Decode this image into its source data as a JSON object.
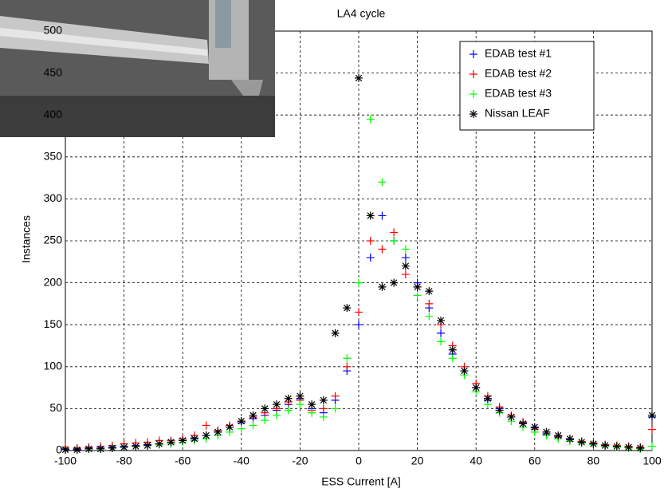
{
  "chart_data": {
    "type": "scatter",
    "title": "LA4 cycle",
    "x_label": "ESS Current [A]",
    "y_label": "Instances",
    "x": [
      -100,
      -96,
      -92,
      -88,
      -84,
      -80,
      -76,
      -72,
      -68,
      -64,
      -60,
      -56,
      -52,
      -48,
      -44,
      -40,
      -36,
      -32,
      -28,
      -24,
      -20,
      -16,
      -12,
      -8,
      -4,
      0,
      4,
      8,
      12,
      16,
      20,
      24,
      28,
      32,
      36,
      40,
      44,
      48,
      52,
      56,
      60,
      64,
      68,
      72,
      76,
      80,
      84,
      88,
      92,
      96,
      100
    ],
    "series": [
      {
        "name": "EDAB test #1",
        "color": "#0000ff",
        "marker": "plus",
        "values": [
          2,
          2,
          3,
          3,
          4,
          5,
          6,
          7,
          8,
          10,
          12,
          15,
          18,
          22,
          28,
          33,
          38,
          42,
          48,
          55,
          62,
          50,
          45,
          60,
          95,
          150,
          230,
          280,
          250,
          230,
          200,
          170,
          140,
          115,
          95,
          75,
          60,
          50,
          40,
          33,
          27,
          20,
          16,
          13,
          10,
          8,
          6,
          5,
          4,
          3,
          40
        ]
      },
      {
        "name": "EDAB test #2",
        "color": "#ff0000",
        "marker": "plus",
        "values": [
          4,
          3,
          4,
          5,
          6,
          8,
          9,
          10,
          12,
          12,
          14,
          18,
          30,
          24,
          30,
          35,
          40,
          45,
          50,
          58,
          60,
          48,
          50,
          65,
          100,
          165,
          250,
          240,
          260,
          210,
          195,
          175,
          150,
          125,
          100,
          80,
          65,
          52,
          42,
          34,
          25,
          22,
          17,
          14,
          11,
          9,
          7,
          6,
          5,
          4,
          25
        ]
      },
      {
        "name": "EDAB test #3",
        "color": "#00ff00",
        "marker": "plus",
        "values": [
          1,
          1,
          2,
          2,
          3,
          4,
          5,
          6,
          7,
          8,
          10,
          12,
          14,
          18,
          22,
          26,
          30,
          36,
          42,
          48,
          55,
          45,
          40,
          50,
          110,
          200,
          395,
          320,
          250,
          240,
          185,
          160,
          130,
          110,
          90,
          70,
          55,
          45,
          35,
          28,
          22,
          18,
          14,
          11,
          9,
          7,
          5,
          4,
          3,
          2,
          5
        ]
      },
      {
        "name": "Nissan LEAF",
        "color": "#000000",
        "marker": "star",
        "values": [
          1,
          1,
          2,
          2,
          3,
          4,
          5,
          6,
          8,
          10,
          12,
          14,
          18,
          22,
          28,
          35,
          42,
          50,
          55,
          62,
          65,
          55,
          60,
          140,
          170,
          444,
          280,
          195,
          200,
          220,
          195,
          190,
          155,
          120,
          95,
          75,
          62,
          48,
          40,
          32,
          28,
          22,
          18,
          14,
          10,
          8,
          6,
          5,
          4,
          3,
          42
        ]
      }
    ],
    "xlim": [
      -100,
      100
    ],
    "xticks": [
      -100,
      -80,
      -60,
      -40,
      -20,
      0,
      20,
      40,
      60,
      80,
      100
    ],
    "ylim": [
      0,
      500
    ],
    "yticks": [
      0,
      50,
      100,
      150,
      200,
      250,
      300,
      350,
      400,
      450,
      500
    ],
    "grid": true,
    "legend": "upper right"
  }
}
